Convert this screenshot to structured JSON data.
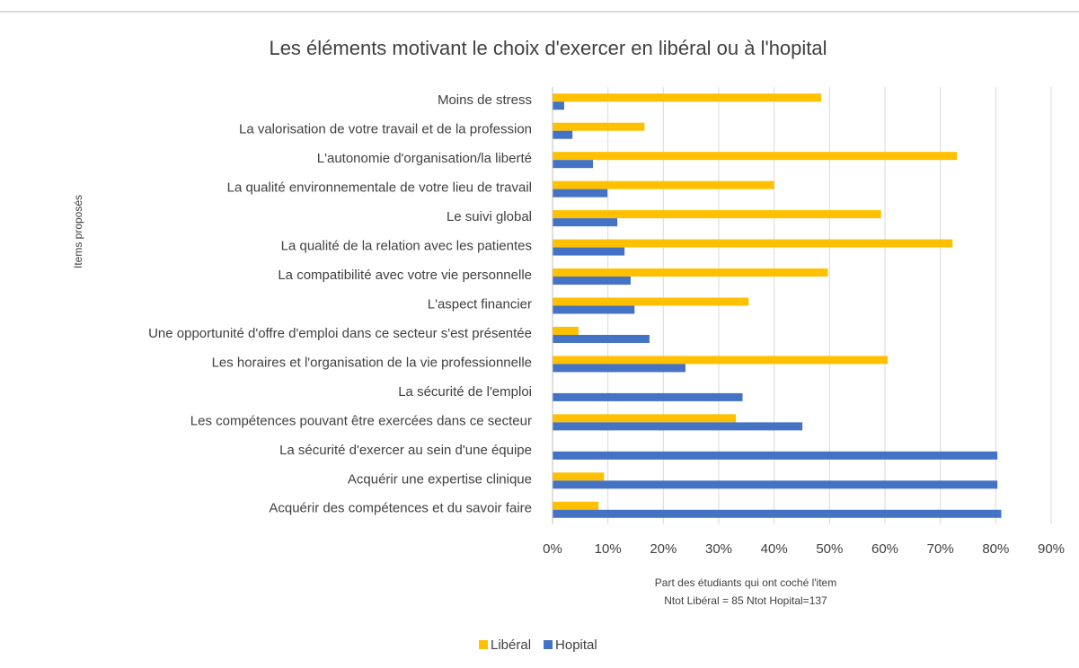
{
  "chart_data": {
    "type": "hbar",
    "title": "Les éléments motivant le choix d'exercer en libéral ou à l'hopital",
    "ylabel": "Items proposés",
    "xlabel": "Part des étudiants qui ont coché l'item",
    "xlabel_note": "Ntot Libéral = 85 Ntot Hopital=137",
    "categories": [
      "Moins de stress",
      "La valorisation de votre travail et de la profession",
      "L'autonomie d'organisation/la liberté",
      "La qualité environnementale de votre lieu de travail",
      "Le suivi global",
      "La qualité de la relation avec les patientes",
      "La compatibilité avec votre vie personnelle",
      "L'aspect financier",
      "Une opportunité d'offre d'emploi dans ce secteur s'est présentée",
      "Les horaires et l'organisation de la vie professionnelle",
      "La sécurité de l'emploi",
      "Les compétences pouvant être exercées dans ce secteur",
      "La sécurité d'exercer au sein d'une équipe",
      "Acquérir une expertise clinique",
      "Acquérir des compétences et du savoir faire"
    ],
    "series": [
      {
        "name": "Libéral",
        "color": "#FFC000",
        "values": [
          48.5,
          16.6,
          73,
          40,
          59.3,
          72.2,
          49.7,
          35.4,
          4.7,
          60.5,
          0,
          33.1,
          0,
          9.3,
          8.3
        ]
      },
      {
        "name": "Hopital",
        "color": "#4472C4",
        "values": [
          2.1,
          3.6,
          7.3,
          9.9,
          11.7,
          13,
          14.1,
          14.8,
          17.5,
          24,
          34.3,
          45.1,
          80.3,
          80.3,
          81
        ]
      }
    ],
    "xlim": [
      0,
      90
    ],
    "xticks": [
      {
        "value": 0,
        "label": "0%"
      },
      {
        "value": 10,
        "label": "10%"
      },
      {
        "value": 20,
        "label": "20%"
      },
      {
        "value": 30,
        "label": "30%"
      },
      {
        "value": 40,
        "label": "40%"
      },
      {
        "value": 50,
        "label": "50%"
      },
      {
        "value": 60,
        "label": "60%"
      },
      {
        "value": 70,
        "label": "70%"
      },
      {
        "value": 80,
        "label": "80%"
      },
      {
        "value": 90,
        "label": "90%"
      }
    ],
    "grid": true,
    "legend": "bottom"
  }
}
